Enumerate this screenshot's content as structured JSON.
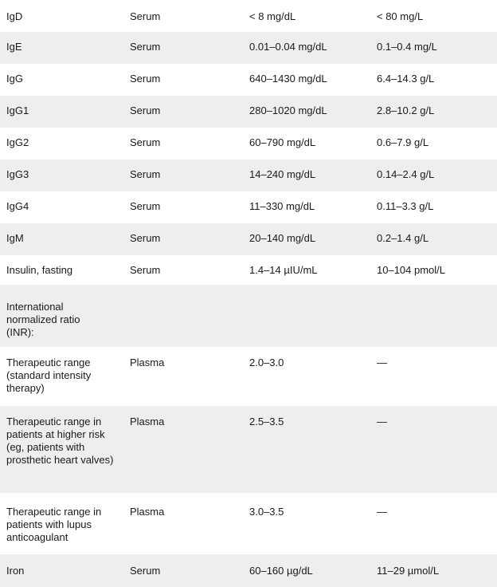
{
  "rows": [
    {
      "test": "IgD",
      "specimen": "Serum",
      "conventional": "< 8 mg/dL",
      "si": "< 80 mg/L"
    },
    {
      "test": "IgE",
      "specimen": "Serum",
      "conventional": "0.01–0.04 mg/dL",
      "si": "0.1–0.4 mg/L"
    },
    {
      "test": "IgG",
      "specimen": "Serum",
      "conventional": "640–1430 mg/dL",
      "si": "6.4–14.3 g/L"
    },
    {
      "test": "IgG1",
      "specimen": "Serum",
      "conventional": "280–1020 mg/dL",
      "si": "2.8–10.2 g/L"
    },
    {
      "test": "IgG2",
      "specimen": "Serum",
      "conventional": "60–790 mg/dL",
      "si": "0.6–7.9 g/L"
    },
    {
      "test": "IgG3",
      "specimen": "Serum",
      "conventional": "14–240 mg/dL",
      "si": "0.14–2.4 g/L"
    },
    {
      "test": "IgG4",
      "specimen": "Serum",
      "conventional": "11–330 mg/dL",
      "si": "0.11–3.3 g/L"
    },
    {
      "test": "IgM",
      "specimen": "Serum",
      "conventional": "20–140 mg/dL",
      "si": "0.2–1.4 g/L"
    },
    {
      "test": "Insulin, fasting",
      "specimen": "Serum",
      "conventional": "1.4–14 µIU/mL",
      "si": "10–104 pmol/L"
    },
    {
      "test": "International normalized ratio (INR):",
      "specimen": "",
      "conventional": "",
      "si": ""
    },
    {
      "test": "Therapeutic range (standard intensity therapy)",
      "specimen": "Plasma",
      "conventional": "2.0–3.0",
      "si": "—"
    },
    {
      "test": "Therapeutic range in patients at higher risk (eg, patients with prosthetic heart valves)",
      "specimen": "Plasma",
      "conventional": "2.5–3.5",
      "si": "—"
    },
    {
      "test": "Therapeutic range in patients with lupus anticoagulant",
      "specimen": "Plasma",
      "conventional": "3.0–3.5",
      "si": "—"
    },
    {
      "test": "Iron",
      "specimen": "Serum",
      "conventional": "60–160 µg/dL",
      "si": "11–29 µmol/L"
    }
  ]
}
